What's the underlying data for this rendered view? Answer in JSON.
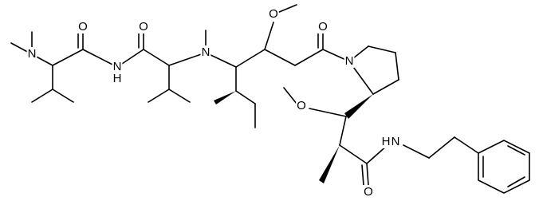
{
  "atoms": [
    {
      "label": "N"
    },
    {
      "label": "O"
    },
    {
      "label": "N"
    },
    {
      "label": "H"
    },
    {
      "label": "O"
    },
    {
      "label": "N"
    },
    {
      "label": "O"
    },
    {
      "label": "O"
    },
    {
      "label": "N"
    },
    {
      "label": "O"
    },
    {
      "label": "N"
    },
    {
      "label": "H"
    },
    {
      "label": "O"
    }
  ]
}
